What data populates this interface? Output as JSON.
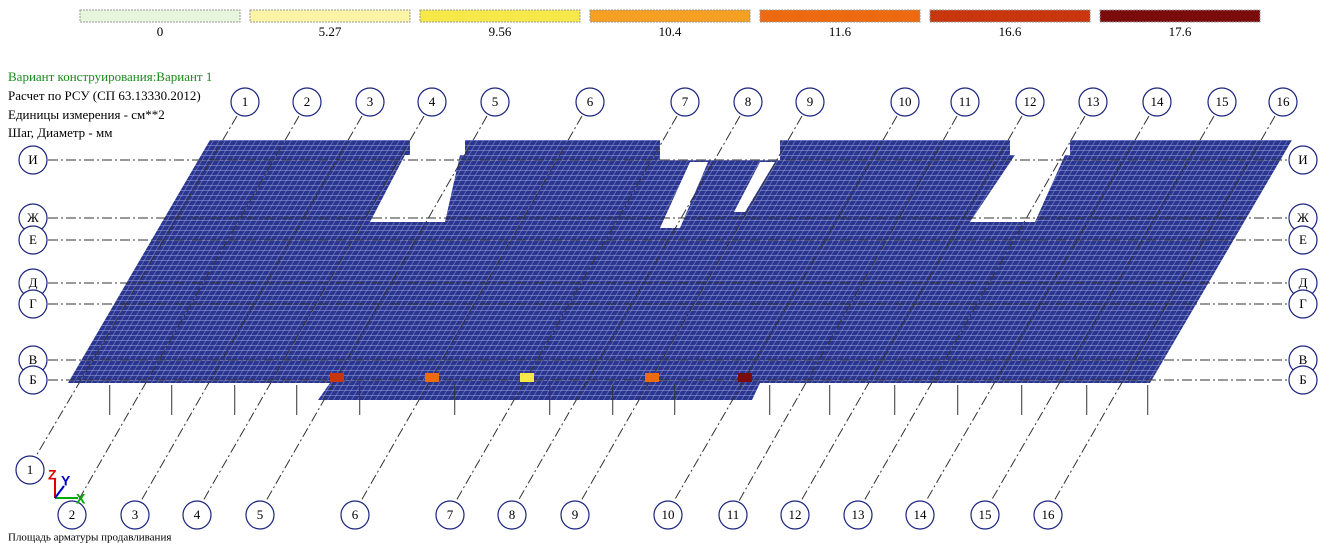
{
  "legend": {
    "items": [
      {
        "value": 0,
        "color": "#e6f5dc"
      },
      {
        "value": 5.27,
        "color": "#fbf3a6"
      },
      {
        "value": 9.56,
        "color": "#f7e84a"
      },
      {
        "value": 10.4,
        "color": "#f5a023"
      },
      {
        "value": 11.6,
        "color": "#ee6a10"
      },
      {
        "value": 16.6,
        "color": "#c9360e"
      },
      {
        "value": 17.6,
        "color": "#7b0c0c"
      }
    ]
  },
  "info": [
    "Вариант конструирования:Вариант 1",
    "Расчет по РСУ (СП 63.13330.2012)",
    "Единицы измерения - см**2",
    "Шаг, Диаметр - мм"
  ],
  "axes": {
    "top": [
      "1",
      "2",
      "3",
      "4",
      "5",
      "6",
      "7",
      "8",
      "9",
      "10",
      "11",
      "12",
      "13",
      "14",
      "15",
      "16"
    ],
    "bottom": [
      "1",
      "2",
      "3",
      "4",
      "5",
      "6",
      "7",
      "8",
      "9",
      "10",
      "11",
      "12",
      "13",
      "14",
      "15",
      "16"
    ],
    "left": [
      "И",
      "Ж",
      "Е",
      "Д",
      "Г",
      "В",
      "Б"
    ],
    "right": [
      "И",
      "Ж",
      "Е",
      "Д",
      "Г",
      "В",
      "Б"
    ]
  },
  "axis_icon": [
    "Z",
    "Y",
    "X"
  ],
  "caption": "Площадь арматуры продавливания"
}
